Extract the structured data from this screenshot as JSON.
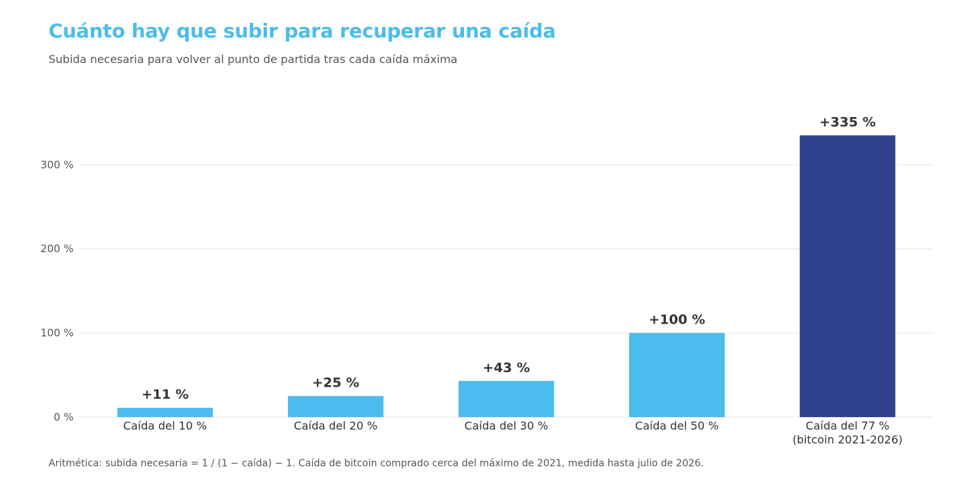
{
  "chart_data": {
    "type": "bar",
    "title": "Cuánto hay que subir para recuperar una caída",
    "subtitle": "Subida necesaria para volver al punto de partida tras cada caída máxima",
    "footnote": "Aritmética: subida necesaria = 1 / (1 − caída) − 1. Caída de bitcoin comprado cerca del máximo de 2021, medida hasta julio de 2026.",
    "categories": [
      [
        "Caída del 10 %"
      ],
      [
        "Caída del 20 %"
      ],
      [
        "Caída del 30 %"
      ],
      [
        "Caída del 50 %"
      ],
      [
        "Caída del 77 %",
        "(bitcoin 2021-2026)"
      ]
    ],
    "values": [
      11,
      25,
      43,
      100,
      335
    ],
    "value_labels": [
      "+11 %",
      "+25 %",
      "+43 %",
      "+100 %",
      "+335 %"
    ],
    "ylim": [
      0,
      360
    ],
    "yticks": [
      0,
      100,
      200,
      300
    ],
    "ytick_labels": [
      "0 %",
      "100 %",
      "200 %",
      "300 %"
    ],
    "xlabel": "",
    "ylabel": "",
    "grid": true,
    "colors": {
      "default_bar": "#4bbcee",
      "highlight_bar": "#30418f",
      "title": "#4bbcee",
      "grid": "#e6e6e6"
    },
    "highlight_index": 4
  }
}
